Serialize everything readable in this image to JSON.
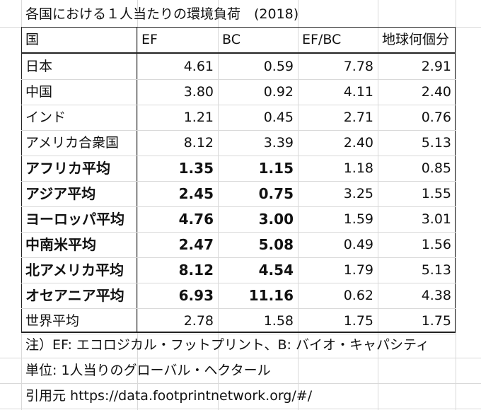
{
  "sheet": {
    "title": "各国における１人当たりの環境負荷　(2018)",
    "headers": [
      "国",
      "EF",
      "BC",
      "EF/BC",
      "地球何個分"
    ],
    "rows": [
      {
        "country": "日本",
        "ef": "4.61",
        "bc": "0.59",
        "efbc": "7.78",
        "earths": "2.91",
        "bold": false
      },
      {
        "country": "中国",
        "ef": "3.80",
        "bc": "0.92",
        "efbc": "4.11",
        "earths": "2.40",
        "bold": false
      },
      {
        "country": "インド",
        "ef": "1.21",
        "bc": "0.45",
        "efbc": "2.71",
        "earths": "0.76",
        "bold": false
      },
      {
        "country": "アメリカ合衆国",
        "ef": "8.12",
        "bc": "3.39",
        "efbc": "2.40",
        "earths": "5.13",
        "bold": false
      },
      {
        "country": "アフリカ平均",
        "ef": "1.35",
        "bc": "1.15",
        "efbc": "1.18",
        "earths": "0.85",
        "bold": true
      },
      {
        "country": "アジア平均",
        "ef": "2.45",
        "bc": "0.75",
        "efbc": "3.25",
        "earths": "1.55",
        "bold": true
      },
      {
        "country": "ヨーロッパ平均",
        "ef": "4.76",
        "bc": "3.00",
        "efbc": "1.59",
        "earths": "3.01",
        "bold": true
      },
      {
        "country": "中南米平均",
        "ef": "2.47",
        "bc": "5.08",
        "efbc": "0.49",
        "earths": "1.56",
        "bold": true
      },
      {
        "country": "北アメリカ平均",
        "ef": "8.12",
        "bc": "4.54",
        "efbc": "1.79",
        "earths": "5.13",
        "bold": true
      },
      {
        "country": "オセアニア平均",
        "ef": "6.93",
        "bc": "11.16",
        "efbc": "0.62",
        "earths": "4.38",
        "bold": true
      },
      {
        "country": "世界平均",
        "ef": "2.78",
        "bc": "1.58",
        "efbc": "1.75",
        "earths": "1.75",
        "bold": false
      }
    ],
    "note1": "注）EF: エコロジカル・フットプリント、B: バイオ・キャパシティ",
    "note2": "単位: 1人当りのグローバル・ヘクタール",
    "note3": "引用元  https://data.footprintnetwork.org/#/"
  }
}
